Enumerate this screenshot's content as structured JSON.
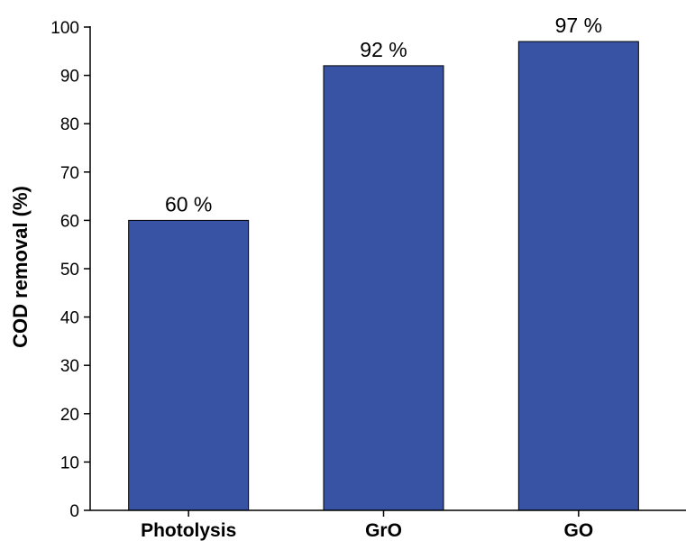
{
  "chart_data": {
    "type": "bar",
    "title": "",
    "xlabel": "",
    "ylabel": "COD removal (%)",
    "categories": [
      "Photolysis",
      "GrO",
      "GO"
    ],
    "values": [
      60,
      92,
      97
    ],
    "data_labels": [
      "60 %",
      "92 %",
      "97 %"
    ],
    "ylim": [
      0,
      100
    ],
    "yticks": [
      0,
      10,
      20,
      30,
      40,
      50,
      60,
      70,
      80,
      90,
      100
    ],
    "grid": false,
    "legend": "none",
    "bar_color": "#3953a4",
    "bar_edge_color": "#000000"
  }
}
